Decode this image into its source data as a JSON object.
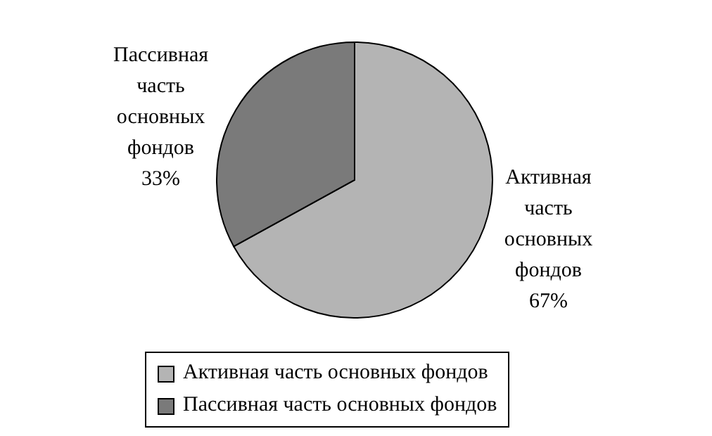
{
  "chart_data": {
    "type": "pie",
    "categories": [
      "Активная часть основных фондов",
      "Пассивная часть основных фондов"
    ],
    "values": [
      67,
      33
    ],
    "colors": [
      "#b4b4b4",
      "#7a7a7a"
    ],
    "value_labels": [
      "67%",
      "33%"
    ],
    "legend": "bottom"
  }
}
